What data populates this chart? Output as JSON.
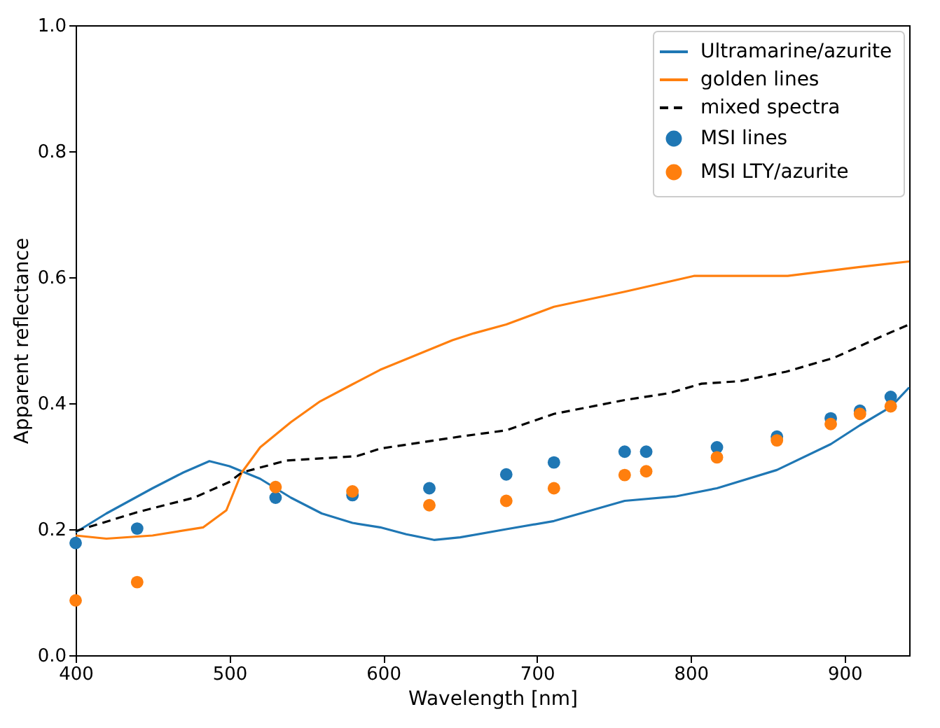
{
  "chart_data": {
    "type": "line",
    "xlabel": "Wavelength [nm]",
    "ylabel": "Apparent reflectance",
    "xlim": [
      400,
      942
    ],
    "ylim": [
      0,
      1
    ],
    "xticks": [
      400,
      500,
      600,
      700,
      800,
      900
    ],
    "yticks": [
      {
        "value": 0,
        "label": "0.0"
      },
      0.2,
      0.4,
      0.6,
      0.8,
      {
        "value": 1,
        "label": "1.0"
      }
    ],
    "grid": false,
    "legend": "top right",
    "series": [
      {
        "name": "Ultramarine/azurite",
        "color": "#1f77b4",
        "line_style": "solid",
        "x": [
          400,
          420,
          450,
          470,
          487,
          500,
          520,
          540,
          560,
          580,
          598,
          615,
          633,
          650,
          680,
          711,
          757,
          790,
          817,
          856,
          891,
          910,
          930,
          942
        ],
        "values": [
          0.195,
          0.225,
          0.265,
          0.29,
          0.308,
          0.3,
          0.28,
          0.25,
          0.225,
          0.21,
          0.203,
          0.192,
          0.183,
          0.187,
          0.2,
          0.213,
          0.245,
          0.252,
          0.265,
          0.294,
          0.335,
          0.365,
          0.394,
          0.425
        ]
      },
      {
        "name": "golden lines",
        "color": "#ff7f0e",
        "line_style": "solid",
        "x": [
          400,
          420,
          450,
          483,
          498,
          508,
          520,
          540,
          559,
          580,
          598,
          620,
          645,
          659,
          680,
          711,
          757,
          802,
          863,
          909,
          942
        ],
        "values": [
          0.19,
          0.185,
          0.19,
          0.203,
          0.23,
          0.29,
          0.33,
          0.37,
          0.403,
          0.43,
          0.453,
          0.475,
          0.5,
          0.511,
          0.525,
          0.553,
          0.577,
          0.602,
          0.602,
          0.616,
          0.625
        ]
      },
      {
        "name": "mixed spectra",
        "color": "#000000",
        "line_style": "dashed",
        "x": [
          400,
          440,
          477,
          500,
          508,
          537,
          583,
          598,
          650,
          680,
          711,
          757,
          786,
          807,
          832,
          862,
          893,
          923,
          942
        ],
        "values": [
          0.197,
          0.227,
          0.25,
          0.275,
          0.29,
          0.309,
          0.316,
          0.328,
          0.347,
          0.357,
          0.383,
          0.405,
          0.416,
          0.431,
          0.435,
          0.45,
          0.472,
          0.505,
          0.525
        ]
      },
      {
        "name": "MSI lines",
        "type": "scatter",
        "color": "#1f77b4",
        "marker": "circle",
        "x": [
          400,
          440,
          530,
          580,
          630,
          680,
          711,
          757,
          771,
          817,
          856,
          891,
          910,
          930
        ],
        "values": [
          0.178,
          0.201,
          0.25,
          0.254,
          0.265,
          0.287,
          0.306,
          0.323,
          0.323,
          0.33,
          0.347,
          0.376,
          0.388,
          0.41
        ]
      },
      {
        "name": "MSI LTY/azurite",
        "type": "scatter",
        "color": "#ff7f0e",
        "marker": "circle",
        "x": [
          400,
          440,
          530,
          580,
          630,
          680,
          711,
          757,
          771,
          817,
          856,
          891,
          910,
          930
        ],
        "values": [
          0.087,
          0.116,
          0.267,
          0.26,
          0.238,
          0.245,
          0.265,
          0.286,
          0.292,
          0.314,
          0.341,
          0.367,
          0.383,
          0.395
        ]
      }
    ]
  }
}
